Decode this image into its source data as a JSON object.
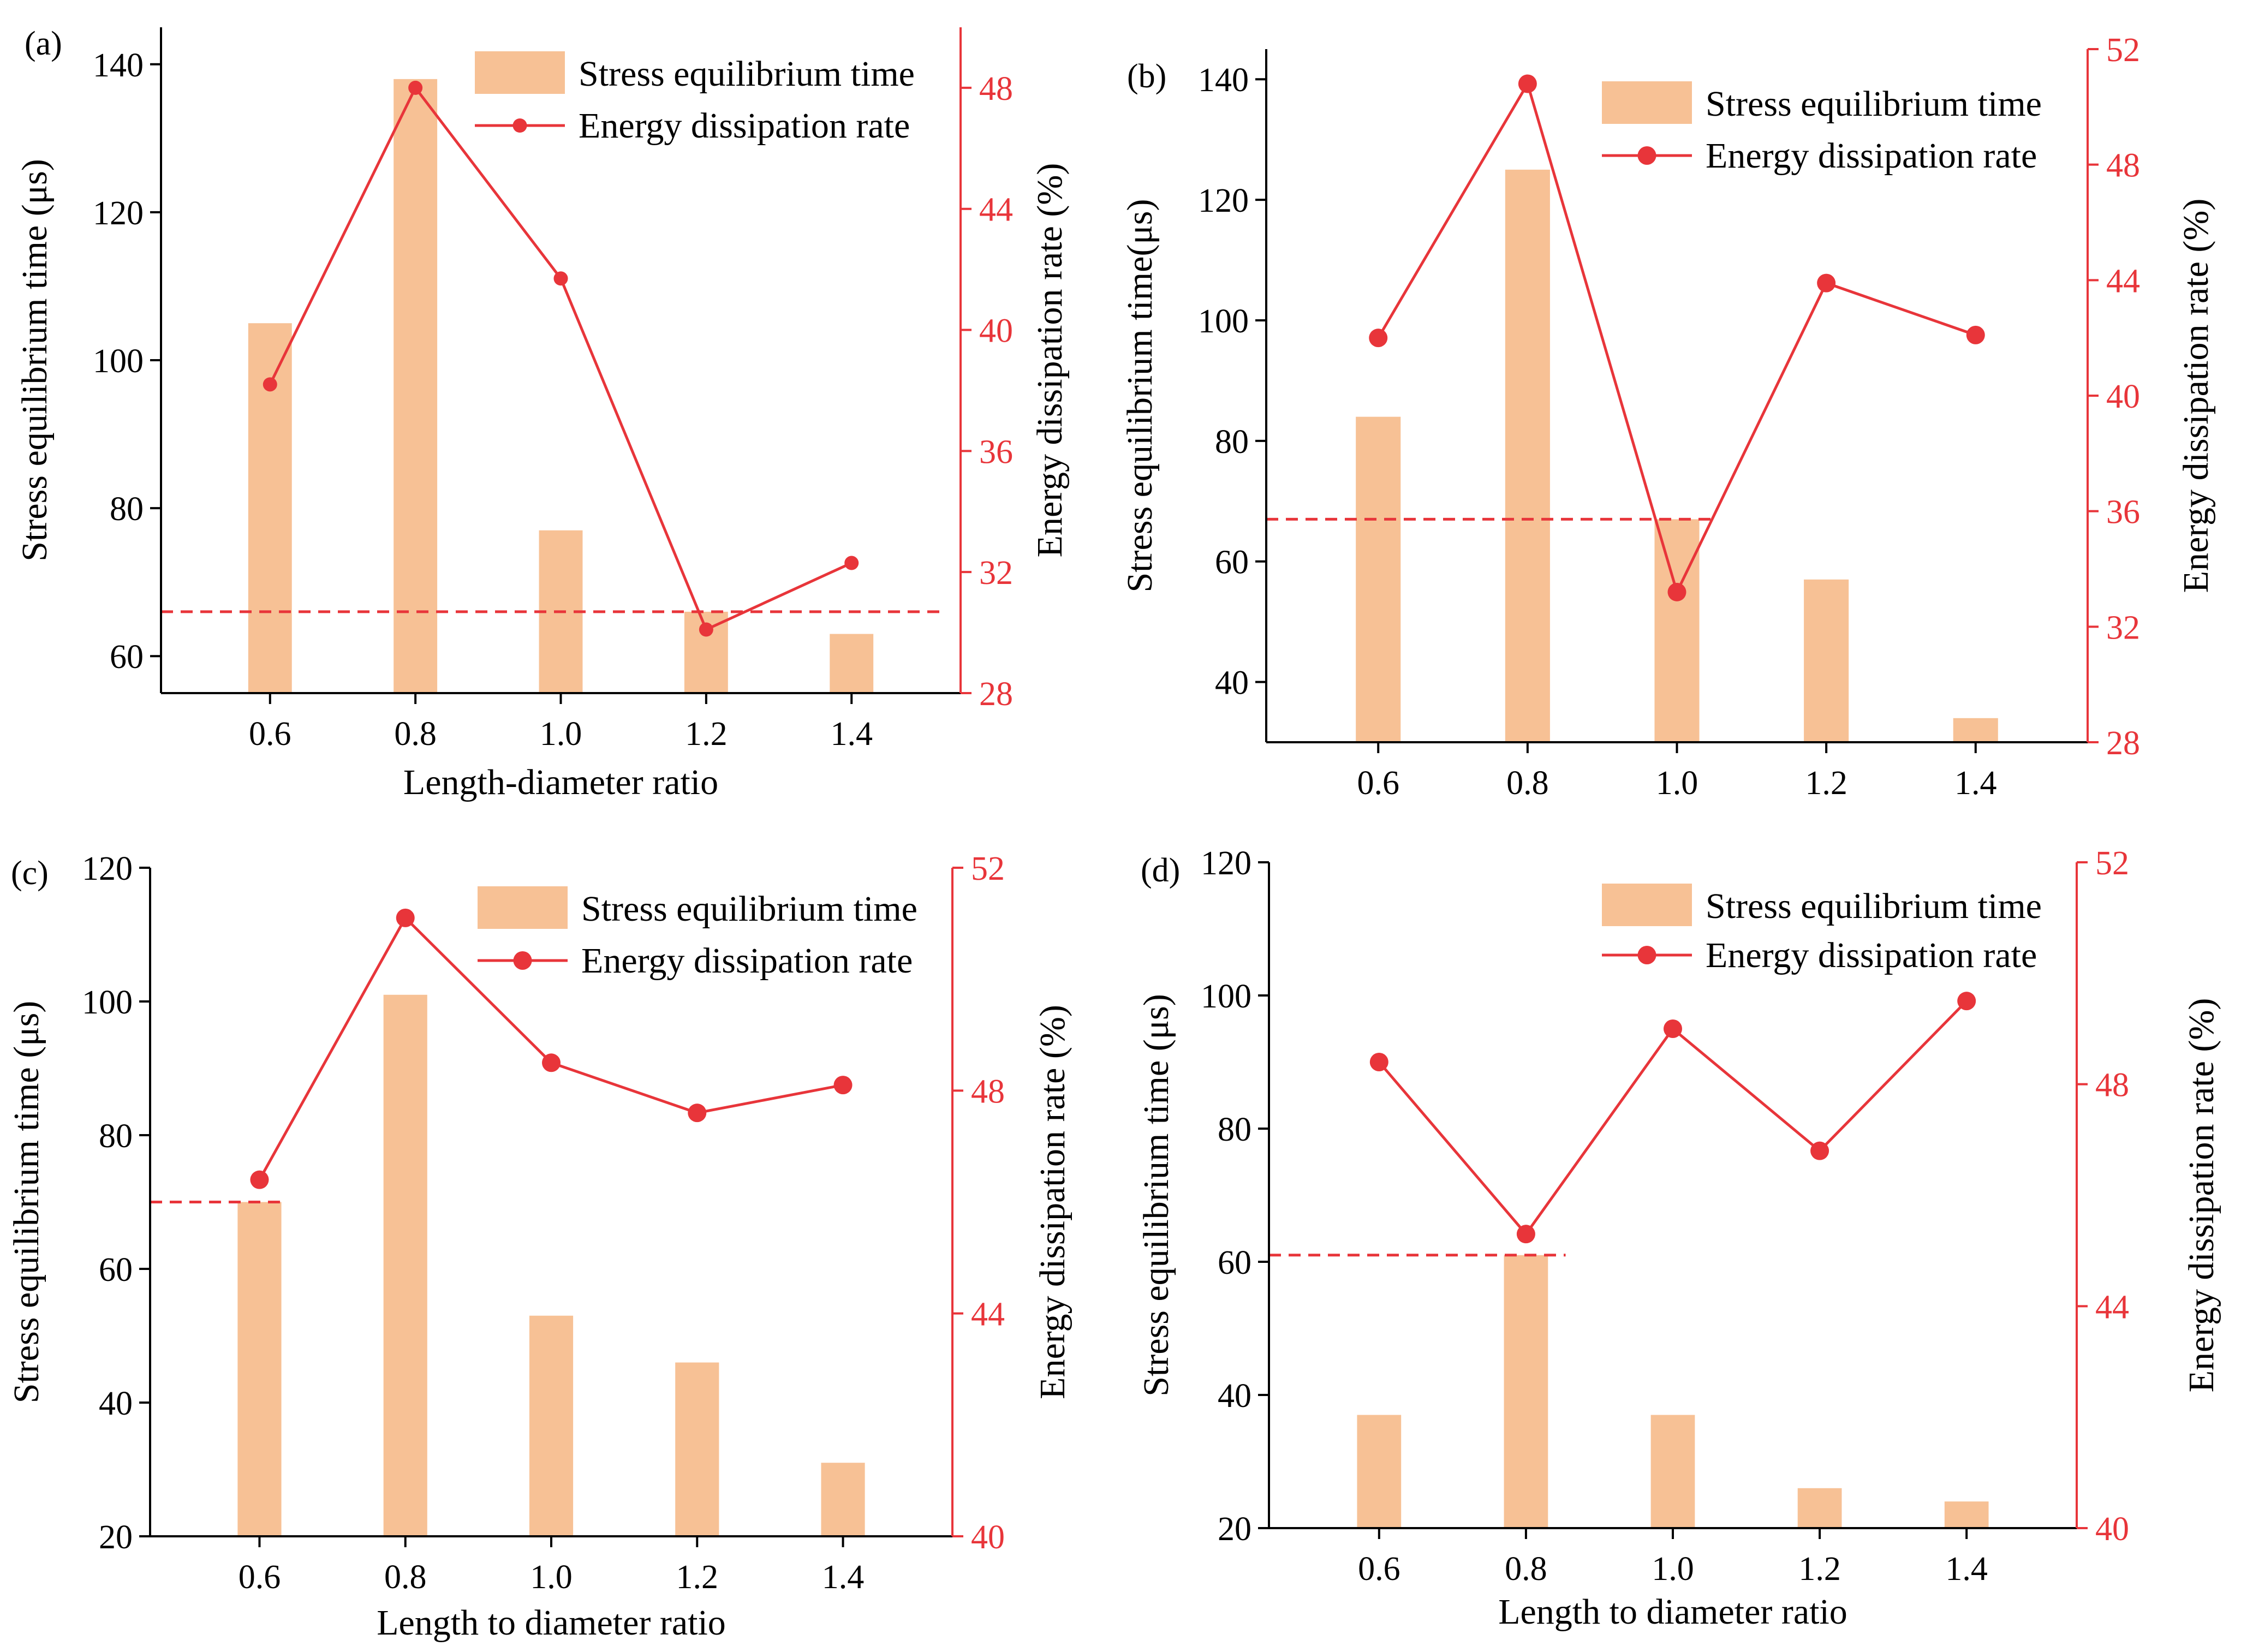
{
  "colors": {
    "bar": "#F7C195",
    "line": "#E8353A",
    "axis": "#000000",
    "right_axis": "#E8353A"
  },
  "chart_data": [
    {
      "panel_label": "(a)",
      "type": "bar+line",
      "categories": [
        "0.6",
        "0.8",
        "1.0",
        "1.2",
        "1.4"
      ],
      "series": [
        {
          "name": "Stress equilibrium time",
          "type": "bar",
          "axis": "left",
          "values": [
            105,
            138,
            77,
            66,
            63
          ]
        },
        {
          "name": "Energy dissipation rate",
          "type": "line",
          "axis": "right",
          "values": [
            38.2,
            48.0,
            41.7,
            30.1,
            32.3
          ]
        }
      ],
      "reference_line": {
        "axis": "left",
        "value": 66,
        "from_category": "0.6",
        "to_category": "1.4",
        "style": "dashed"
      },
      "xlabel": "Length-diameter ratio",
      "ylabel": "Stress equilibrium time (μs)",
      "y2label": "Energy dissipation rate (%)",
      "ylim": [
        55,
        145
      ],
      "yticks": [
        60,
        80,
        100,
        120,
        140
      ],
      "y2lim": [
        28,
        50
      ],
      "y2ticks": [
        28,
        32,
        36,
        40,
        44,
        48
      ],
      "legend": {
        "position": "top-right",
        "entries": [
          "Stress equilibrium time",
          "Energy dissipation rate"
        ]
      }
    },
    {
      "panel_label": "(b)",
      "type": "bar+line",
      "categories": [
        "0.6",
        "0.8",
        "1.0",
        "1.2",
        "1.4"
      ],
      "series": [
        {
          "name": "Stress equilibrium time",
          "type": "bar",
          "axis": "left",
          "values": [
            84,
            125,
            67,
            57,
            34
          ]
        },
        {
          "name": "Energy dissipation rate",
          "type": "line",
          "axis": "right",
          "values": [
            42.0,
            50.8,
            33.2,
            43.9,
            42.1
          ]
        }
      ],
      "reference_line": {
        "axis": "left",
        "value": 67,
        "from_category": "0.6",
        "to_category": "1.0",
        "style": "dashed"
      },
      "xlabel": "",
      "ylabel": "Stress equilibrium time(μs)",
      "y2label": "Energy dissipation rate (%)",
      "ylim": [
        30,
        145
      ],
      "yticks": [
        40,
        60,
        80,
        100,
        120,
        140
      ],
      "y2lim": [
        28,
        52
      ],
      "y2ticks": [
        28,
        32,
        36,
        40,
        44,
        48,
        52
      ],
      "legend": {
        "position": "top-right",
        "entries": [
          "Stress equilibrium time",
          "Energy dissipation rate"
        ]
      }
    },
    {
      "panel_label": "(c)",
      "type": "bar+line",
      "categories": [
        "0.6",
        "0.8",
        "1.0",
        "1.2",
        "1.4"
      ],
      "series": [
        {
          "name": "Stress equilibrium time",
          "type": "bar",
          "axis": "left",
          "values": [
            70,
            101,
            53,
            46,
            31
          ]
        },
        {
          "name": "Energy dissipation rate",
          "type": "line",
          "axis": "right",
          "values": [
            46.4,
            51.1,
            48.5,
            47.6,
            48.1
          ]
        }
      ],
      "reference_line": {
        "axis": "left",
        "value": 70,
        "from_category": "0.6",
        "to_category": "0.6",
        "style": "dashed"
      },
      "xlabel": "Length to diameter ratio",
      "ylabel": "Stress equilibrium time (μs)",
      "y2label": "Energy dissipation rate (%)",
      "ylim": [
        20,
        120
      ],
      "yticks": [
        20,
        40,
        60,
        80,
        100,
        120
      ],
      "y2lim": [
        40,
        52
      ],
      "y2ticks": [
        40,
        44,
        48,
        52
      ],
      "legend": {
        "position": "top-right",
        "entries": [
          "Stress equilibrium time",
          "Energy dissipation rate"
        ]
      }
    },
    {
      "panel_label": "(d)",
      "type": "bar+line",
      "categories": [
        "0.6",
        "0.8",
        "1.0",
        "1.2",
        "1.4"
      ],
      "series": [
        {
          "name": "Stress equilibrium time",
          "type": "bar",
          "axis": "left",
          "values": [
            37,
            61,
            37,
            26,
            24
          ]
        },
        {
          "name": "Energy dissipation rate",
          "type": "line",
          "axis": "right",
          "values": [
            48.4,
            45.3,
            49.0,
            46.8,
            49.5
          ]
        }
      ],
      "reference_line": {
        "axis": "left",
        "value": 61,
        "from_category": "0.6",
        "to_category": "0.8",
        "style": "dashed"
      },
      "xlabel": "Length to diameter ratio",
      "ylabel": "Stress equilibrium time (μs)",
      "y2label": "Energy dissipation rate (%)",
      "ylim": [
        20,
        120
      ],
      "yticks": [
        20,
        40,
        60,
        80,
        100,
        120
      ],
      "y2lim": [
        40,
        52
      ],
      "y2ticks": [
        40,
        44,
        48,
        52
      ],
      "legend": {
        "position": "top-right",
        "entries": [
          "Stress equilibrium time",
          "Energy dissipation rate"
        ]
      }
    }
  ]
}
